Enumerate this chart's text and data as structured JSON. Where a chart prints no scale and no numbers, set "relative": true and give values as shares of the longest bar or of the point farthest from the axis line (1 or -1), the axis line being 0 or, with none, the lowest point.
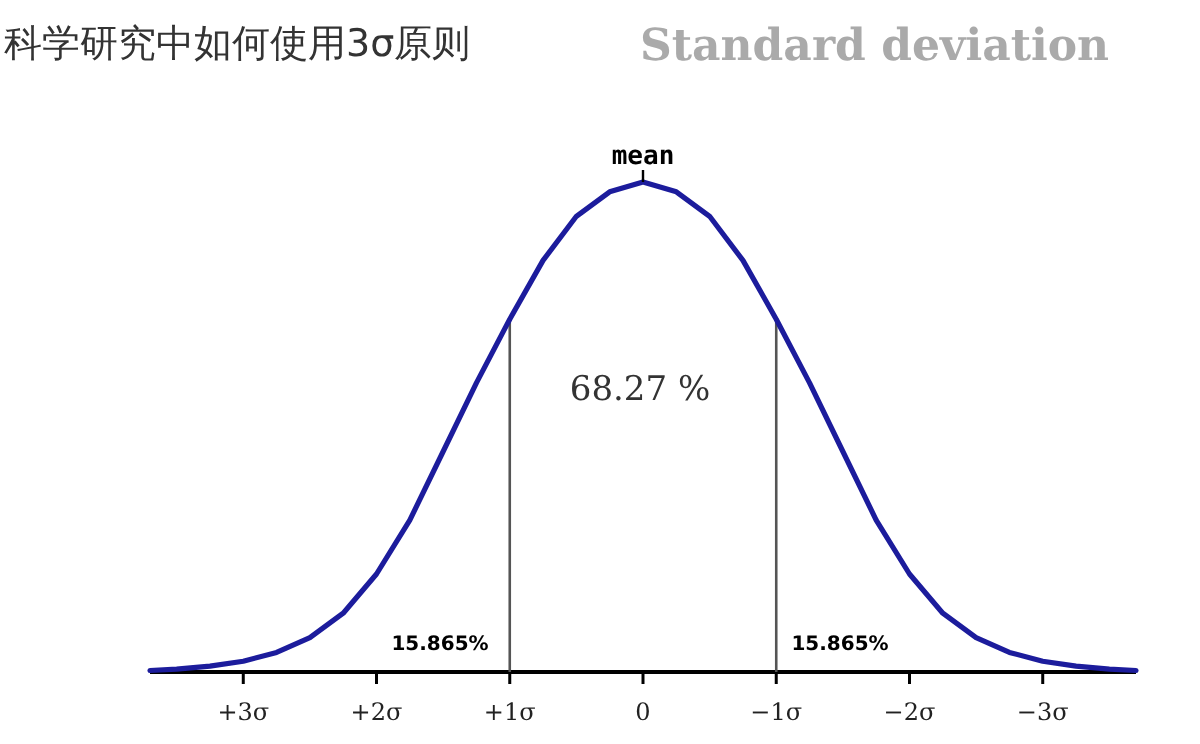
{
  "chart_data": {
    "type": "line",
    "title": "科学研究中如何使用3σ原则",
    "subtitle": "Standard deviation",
    "relative": true,
    "x": [
      -3.7,
      -3.5,
      -3.25,
      -3,
      -2.75,
      -2.5,
      -2.25,
      -2,
      -1.75,
      -1.5,
      -1.25,
      -1,
      -0.75,
      -0.5,
      -0.25,
      0,
      0.25,
      0.5,
      0.75,
      1,
      1.25,
      1.5,
      1.75,
      2,
      2.25,
      2.5,
      2.75,
      3,
      3.25,
      3.5,
      3.7
    ],
    "series": [
      {
        "color": "#1c1c9c",
        "values": [
          0.003,
          0.006,
          0.012,
          0.022,
          0.04,
          0.07,
          0.12,
          0.2,
          0.31,
          0.45,
          0.59,
          0.72,
          0.84,
          0.93,
          0.98,
          1,
          0.98,
          0.93,
          0.84,
          0.72,
          0.59,
          0.45,
          0.31,
          0.2,
          0.12,
          0.07,
          0.04,
          0.022,
          0.012,
          0.006,
          0.003
        ]
      }
    ],
    "xlim": [
      3.7,
      -3.7
    ],
    "xticks": [
      {
        "value": 3,
        "label": "+3σ"
      },
      {
        "value": 2,
        "label": "+2σ"
      },
      {
        "value": 1,
        "label": "+1σ"
      },
      0,
      {
        "value": -1,
        "label": "−1σ"
      },
      {
        "value": -2,
        "label": "−2σ"
      },
      {
        "value": -3,
        "label": "−3σ"
      }
    ],
    "ref_lines": [
      {
        "axis": "x",
        "value": -1,
        "color": "#555555"
      },
      {
        "axis": "x",
        "value": 1,
        "color": "#555555"
      }
    ],
    "annotations": [
      {
        "text": "mean",
        "x": 0,
        "y": 1
      },
      "68.27 %",
      "15.865%",
      "15.865%"
    ]
  }
}
